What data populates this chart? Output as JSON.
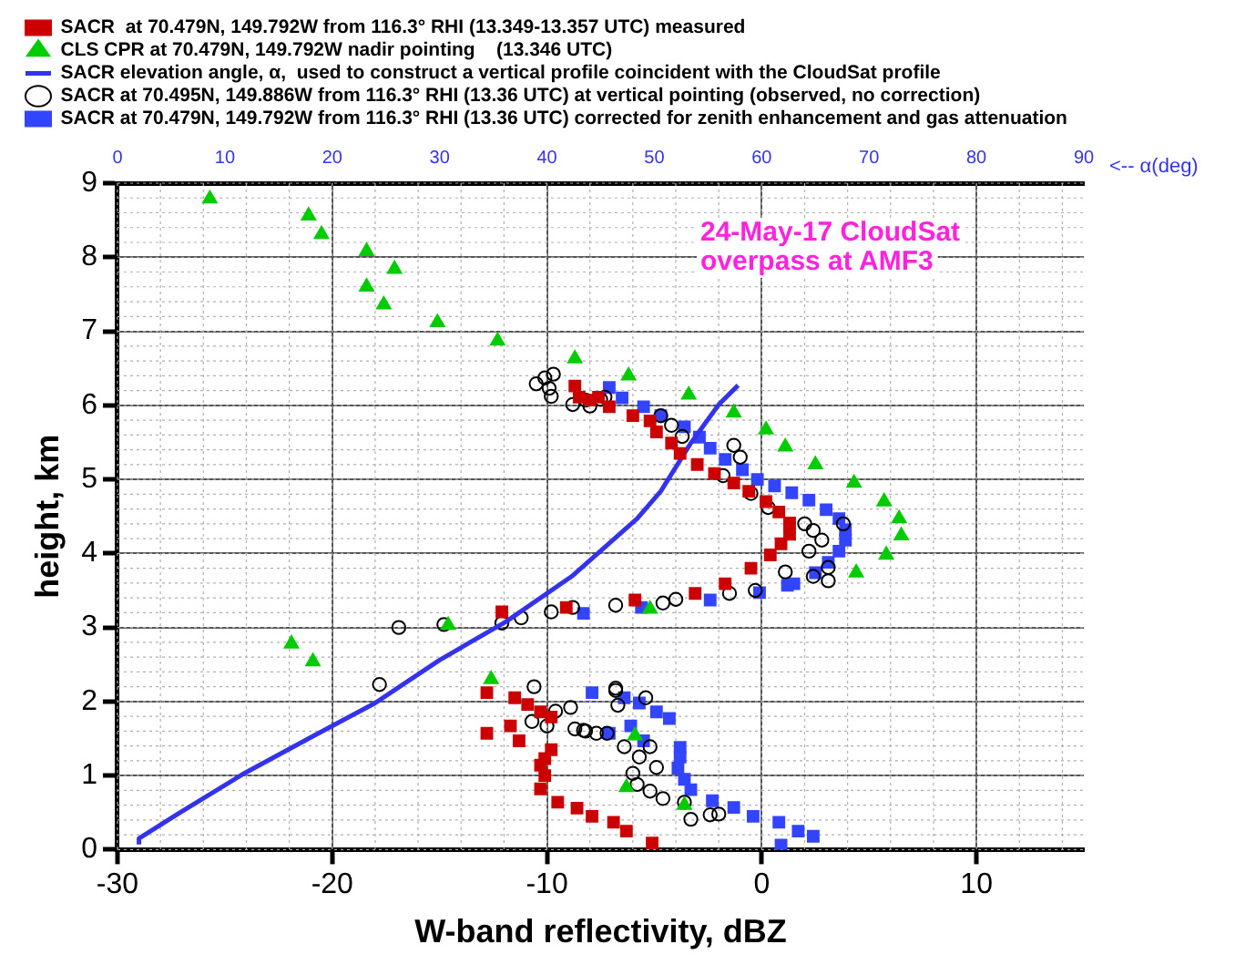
{
  "chart_data": {
    "type": "scatter",
    "xlabel": "W-band reflectivity, dBZ",
    "ylabel": "height, km",
    "x2label": "<-- α(deg)",
    "xlim": [
      -30,
      15
    ],
    "xticks": [
      -30,
      -20,
      -10,
      0,
      10
    ],
    "ylim": [
      0,
      9
    ],
    "yticks": [
      0,
      1,
      2,
      3,
      4,
      5,
      6,
      7,
      8,
      9
    ],
    "x2lim": [
      0,
      90
    ],
    "x2ticks": [
      0,
      10,
      20,
      30,
      40,
      50,
      60,
      70,
      80,
      90
    ],
    "grid": true,
    "legend": "top",
    "annotations": [
      "24-May-17 CloudSat overpass at AMF3"
    ],
    "series": [
      {
        "name": "SACR  at 70.479N, 149.792W from 116.3° RHI (13.349-13.357 UTC) measured",
        "marker": "square",
        "color": "#cc0000",
        "x": [
          -8.7,
          -8.5,
          -8.0,
          -7.1,
          -7.6,
          -6.0,
          -5.2,
          -4.9,
          -4.2,
          -3.8,
          -3.0,
          -2.2,
          -1.3,
          -0.6,
          0.2,
          0.8,
          1.3,
          1.3,
          0.9,
          0.4,
          -0.5,
          -1.7,
          -3.1,
          -5.9,
          -9.1,
          -12.1,
          -12.8,
          -11.5,
          -10.9,
          -10.3,
          -9.8,
          -12.8,
          -11.7,
          -11.3,
          -9.8,
          -10.1,
          -10.3,
          -10.1,
          -10.3,
          -9.5,
          -8.6,
          -7.9,
          -6.9,
          -6.3,
          -5.1
        ],
        "values": [
          6.26,
          6.11,
          6.07,
          5.98,
          6.11,
          5.86,
          5.79,
          5.64,
          5.49,
          5.35,
          5.2,
          5.08,
          4.95,
          4.84,
          4.7,
          4.56,
          4.41,
          4.26,
          4.13,
          3.98,
          3.8,
          3.59,
          3.46,
          3.37,
          3.27,
          3.21,
          2.12,
          2.05,
          1.96,
          1.86,
          1.79,
          1.57,
          1.67,
          1.47,
          1.35,
          1.23,
          1.14,
          1.0,
          0.82,
          0.64,
          0.56,
          0.45,
          0.37,
          0.25,
          0.09
        ]
      },
      {
        "name": "CLS CPR at 70.479N, 149.792W nadir pointing    (13.346 UTC)",
        "marker": "triangle",
        "color": "#00cc00",
        "x": [
          -25.7,
          -21.1,
          -20.5,
          -18.4,
          -17.1,
          -18.4,
          -17.6,
          -15.1,
          -12.3,
          -8.7,
          -6.2,
          -3.4,
          -1.3,
          0.2,
          1.1,
          2.5,
          4.3,
          5.7,
          6.4,
          6.5,
          5.8,
          4.4,
          -21.9,
          -20.9,
          -14.6,
          -12.6,
          -5.2,
          -5.9,
          -6.3,
          -3.6
        ],
        "values": [
          8.79,
          8.56,
          8.31,
          8.08,
          7.84,
          7.6,
          7.36,
          7.12,
          6.87,
          6.63,
          6.4,
          6.14,
          5.9,
          5.67,
          5.44,
          5.2,
          4.95,
          4.7,
          4.47,
          4.24,
          3.98,
          3.74,
          2.78,
          2.54,
          3.03,
          2.3,
          3.25,
          1.54,
          0.84,
          0.6
        ]
      },
      {
        "name": "SACR elevation angle, α,  used to construct a vertical profile coincident with the CloudSat profile",
        "type": "line",
        "axis": "x2",
        "marker": "none",
        "color": "#3333ee",
        "x": [
          2.0,
          2.0,
          5.6,
          11.8,
          17.8,
          24.0,
          30.0,
          36.2,
          42.4,
          48.4,
          50.6,
          53.4,
          56.0,
          57.8
        ],
        "values": [
          0.07,
          0.15,
          0.48,
          1.03,
          1.5,
          1.98,
          2.56,
          3.08,
          3.7,
          4.47,
          4.84,
          5.49,
          6.01,
          6.27
        ]
      },
      {
        "name": "SACR at 70.495N, 149.886W from 116.3° RHI (13.36 UTC) at vertical pointing (observed, no correction)",
        "marker": "circle",
        "color": "#000000",
        "x": [
          -10.5,
          -10.1,
          -9.7,
          -9.9,
          -9.8,
          -8.8,
          -8.0,
          -7.5,
          -8.2,
          -7.3,
          -4.7,
          -4.2,
          -3.7,
          -1.3,
          -1.0,
          -1.8,
          -0.5,
          0.3,
          2.0,
          2.4,
          3.8,
          2.8,
          2.2,
          3.1,
          3.1,
          1.1,
          2.4,
          -0.3,
          -1.5,
          -4.0,
          -4.6,
          -6.8,
          -8.8,
          -9.8,
          -11.2,
          -12.1,
          -14.8,
          -16.9,
          -17.8,
          -10.6,
          -8.9,
          -9.6,
          -10.7,
          -10.0,
          -8.7,
          -8.2,
          -7.7,
          -6.8,
          -6.7,
          -6.8,
          -5.4,
          -8.3,
          -7.2,
          -6.4,
          -5.2,
          -5.7,
          -4.9,
          -6.0,
          -5.8,
          -5.2,
          -4.6,
          -3.6,
          -3.3,
          -2.4,
          -2.0
        ],
        "values": [
          6.29,
          6.37,
          6.42,
          6.23,
          6.12,
          6.01,
          5.99,
          6.08,
          6.07,
          6.11,
          5.86,
          5.73,
          5.58,
          5.46,
          5.3,
          5.05,
          4.81,
          4.62,
          4.4,
          4.31,
          4.4,
          4.18,
          4.03,
          3.81,
          3.63,
          3.75,
          3.69,
          3.5,
          3.46,
          3.38,
          3.33,
          3.3,
          3.27,
          3.21,
          3.13,
          3.06,
          3.04,
          3.0,
          2.23,
          2.2,
          1.92,
          1.87,
          1.73,
          1.67,
          1.63,
          1.6,
          1.57,
          2.15,
          1.95,
          2.18,
          2.05,
          1.61,
          1.57,
          1.39,
          1.39,
          1.25,
          1.11,
          1.03,
          0.88,
          0.79,
          0.69,
          0.64,
          0.41,
          0.47,
          0.48
        ]
      },
      {
        "name": "SACR at 70.479N, 149.792W from 116.3° RHI (13.36 UTC) corrected for zenith enhancement and gas attenuation",
        "marker": "square",
        "color": "#3344ff",
        "x": [
          -7.1,
          -6.5,
          -5.5,
          -4.7,
          -3.6,
          -2.9,
          -2.4,
          -1.7,
          -0.9,
          -0.2,
          0.6,
          1.4,
          2.2,
          3.0,
          3.6,
          3.9,
          3.9,
          3.6,
          3.1,
          2.5,
          1.5,
          1.2,
          -0.1,
          -2.4,
          -5.6,
          -8.3,
          -7.9,
          -6.4,
          -5.7,
          -4.9,
          -4.3,
          -7.1,
          -6.1,
          -5.5,
          -3.8,
          -3.8,
          -3.9,
          -3.6,
          -3.3,
          -2.3,
          -1.3,
          -0.4,
          0.8,
          1.7,
          2.4,
          0.9
        ],
        "values": [
          6.24,
          6.1,
          5.98,
          5.86,
          5.71,
          5.57,
          5.42,
          5.27,
          5.13,
          5.0,
          4.91,
          4.82,
          4.72,
          4.59,
          4.47,
          4.32,
          4.18,
          4.03,
          3.88,
          3.74,
          3.59,
          3.57,
          3.47,
          3.37,
          3.27,
          3.19,
          2.12,
          2.05,
          1.98,
          1.86,
          1.77,
          1.57,
          1.67,
          1.47,
          1.38,
          1.25,
          1.1,
          0.95,
          0.81,
          0.66,
          0.57,
          0.45,
          0.37,
          0.25,
          0.18,
          0.06
        ]
      }
    ]
  }
}
